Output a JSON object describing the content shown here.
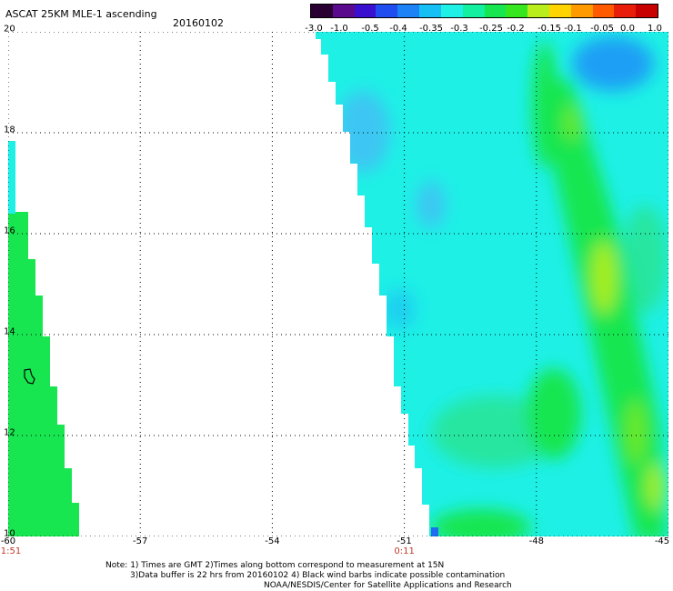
{
  "header": {
    "title": "ASCAT 25KM MLE-1 ascending",
    "date": "20160102"
  },
  "colorbar": {
    "labels": [
      "-3.0",
      "-1.0",
      "-0.5",
      "-0.4",
      "-0.35",
      "-0.3",
      "-0.25",
      "-0.2",
      "-0.15",
      "-0.1",
      "-0.05",
      "0.0",
      "1.0"
    ],
    "colors": [
      "#2a0033",
      "#5a0a8c",
      "#3a10d0",
      "#1f4df0",
      "#1c82f5",
      "#16c0f5",
      "#1ef0e6",
      "#12f0a0",
      "#18e650",
      "#36e61e",
      "#b9ee1c",
      "#ffd400",
      "#ff9a00",
      "#ff5a00",
      "#e81e0a",
      "#c80000"
    ]
  },
  "axes": {
    "x": {
      "min": -60,
      "max": -45,
      "tick_labels": [
        "-60",
        "-57",
        "-54",
        "-51",
        "-48",
        "-45"
      ]
    },
    "y": {
      "min": 10,
      "max": 20,
      "tick_labels": [
        "10",
        "12",
        "14",
        "16",
        "18",
        "20"
      ]
    }
  },
  "time_labels": [
    {
      "text": "1:51",
      "lon": -60
    },
    {
      "text": "0:11",
      "lon": -51
    }
  ],
  "notes": {
    "line1": "Note: 1) Times are GMT 2)Times along bottom correspond to measurement at 15N",
    "line2": "3)Data buffer is 22 hrs from 20160102 4) Black wind barbs indicate possible contamination",
    "line3": "NOAA/NESDIS/Center for Satellite Applications and Research"
  },
  "palette": {
    "background": "#1ef0e6",
    "green": "#18e650",
    "yellow_green": "#a6ee1c",
    "blue": "#1c9ff5",
    "grid": "#000000"
  }
}
